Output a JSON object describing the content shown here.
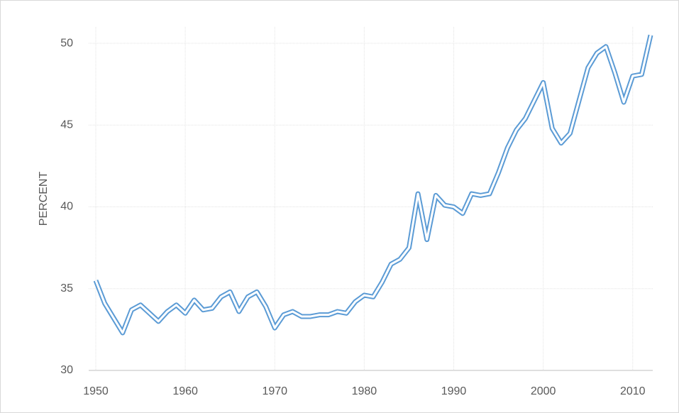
{
  "chart_data": {
    "type": "line",
    "y_label": "PERCENT",
    "categories": [
      1950,
      null,
      null,
      null,
      null,
      null,
      null,
      null,
      null,
      null,
      1960,
      null,
      null,
      null,
      null,
      null,
      null,
      null,
      null,
      null,
      1970,
      null,
      null,
      null,
      null,
      null,
      null,
      null,
      null,
      null,
      1980,
      null,
      null,
      null,
      null,
      null,
      null,
      null,
      null,
      null,
      1990,
      null,
      null,
      null,
      null,
      null,
      null,
      null,
      null,
      null,
      2000,
      null,
      null,
      null,
      null,
      null,
      null,
      null,
      null,
      null,
      2010,
      null,
      null
    ],
    "series": [
      {
        "color": "#5b9bd5",
        "values": [
          35.5,
          34.1,
          33.2,
          32.3,
          33.7,
          34.0,
          33.5,
          33.0,
          33.6,
          34.0,
          33.5,
          34.3,
          33.7,
          33.8,
          34.5,
          34.8,
          33.6,
          34.5,
          34.8,
          33.9,
          32.6,
          33.4,
          33.6,
          33.3,
          33.3,
          33.4,
          33.4,
          33.6,
          33.5,
          34.2,
          34.6,
          34.5,
          35.4,
          36.5,
          36.8,
          37.5,
          40.8,
          38.0,
          40.7,
          40.1,
          40.0,
          39.6,
          40.8,
          40.7,
          40.8,
          42.1,
          43.6,
          44.7,
          45.4,
          46.5,
          47.6,
          44.8,
          43.9,
          44.5,
          46.5,
          48.5,
          49.4,
          49.8,
          48.2,
          46.4,
          48.0,
          48.1,
          50.5
        ]
      }
    ],
    "ylim": [
      30,
      51
    ],
    "yticks": [
      30,
      35,
      40,
      45,
      50
    ],
    "grid": true
  }
}
